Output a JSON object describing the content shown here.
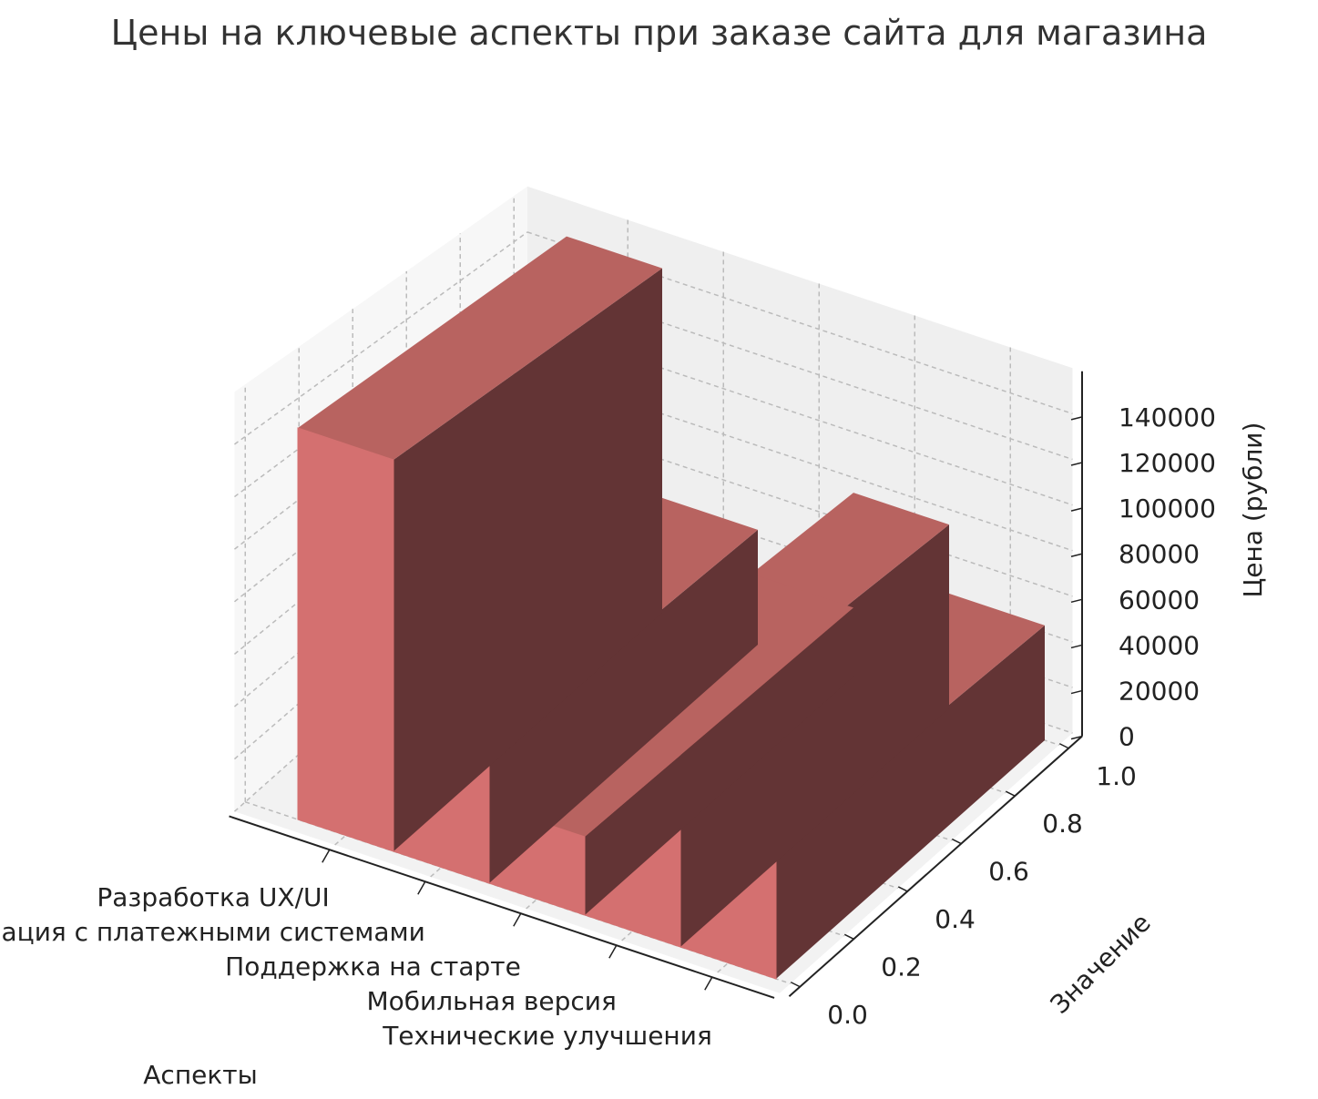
{
  "chart_data": {
    "type": "bar3d",
    "title": "Цены на ключевые аспекты при заказе сайта для магазина",
    "xlabel": "Аспекты",
    "ylabel": "Значение",
    "zlabel": "Цена (рубли)",
    "categories": [
      "Разработка UX/UI",
      "Интеграция с платежными системами",
      "Поддержка на старте",
      "Мобильная версия",
      "Технические улучшения"
    ],
    "values": [
      150000,
      50000,
      30000,
      80000,
      50000
    ],
    "ylim": [
      0,
      1
    ],
    "zlim": [
      0,
      150000
    ],
    "yticks": [
      "0.0",
      "0.2",
      "0.4",
      "0.6",
      "0.8",
      "1.0"
    ],
    "zticks": [
      "0",
      "20000",
      "40000",
      "60000",
      "80000",
      "100000",
      "120000",
      "140000"
    ],
    "grid": true,
    "colors": {
      "front": "#d47070",
      "top": "#b86360",
      "side": "#633435"
    }
  }
}
